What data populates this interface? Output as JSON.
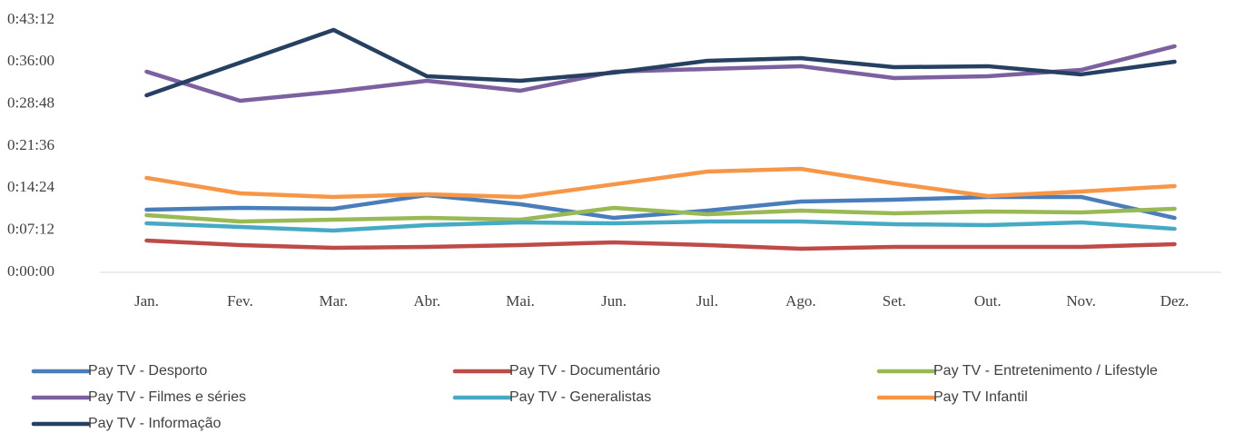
{
  "chart_data": {
    "type": "line",
    "categories": [
      "Jan.",
      "Fev.",
      "Mar.",
      "Abr.",
      "Mai.",
      "Jun.",
      "Jul.",
      "Ago.",
      "Set.",
      "Out.",
      "Nov.",
      "Dez."
    ],
    "series": [
      {
        "name": "Pay TV - Desporto",
        "color": "#4a7ebb",
        "values": [
          643,
          662,
          653,
          793,
          699,
          559,
          634,
          727,
          746,
          774,
          774,
          559
        ]
      },
      {
        "name": "Pay TV - Documentário",
        "color": "#be4b48",
        "values": [
          326,
          280,
          252,
          261,
          280,
          308,
          280,
          242,
          261,
          261,
          261,
          289
        ]
      },
      {
        "name": "Pay TV - Entretenimento / Lifestyle",
        "color": "#98b954",
        "values": [
          587,
          522,
          541,
          559,
          541,
          662,
          597,
          634,
          606,
          625,
          615,
          653
        ]
      },
      {
        "name": "Pay TV - Filmes e séries",
        "color": "#7d60a0",
        "values": [
          2061,
          1762,
          1855,
          1967,
          1865,
          2061,
          2089,
          2117,
          1995,
          2014,
          2079,
          2322
        ]
      },
      {
        "name": "Pay TV - Generalistas",
        "color": "#46aac5",
        "values": [
          503,
          466,
          429,
          485,
          513,
          503,
          522,
          522,
          494,
          485,
          513,
          447
        ]
      },
      {
        "name": "Pay TV Infantil",
        "color": "#f79646",
        "values": [
          970,
          811,
          774,
          802,
          774,
          904,
          1035,
          1063,
          914,
          783,
          830,
          886
        ]
      },
      {
        "name": "Pay TV - Informação",
        "color": "#254061",
        "values": [
          1818,
          2154,
          2490,
          2014,
          1967,
          2051,
          2173,
          2200,
          2107,
          2117,
          2033,
          2163
        ]
      }
    ],
    "ylim": [
      0,
      2592
    ],
    "yticks": [
      {
        "value": 0,
        "label": "0:00:00"
      },
      {
        "value": 432,
        "label": "0:07:12"
      },
      {
        "value": 864,
        "label": "0:14:24"
      },
      {
        "value": 1296,
        "label": "0:21:36"
      },
      {
        "value": 1728,
        "label": "0:28:48"
      },
      {
        "value": 2160,
        "label": "0:36:00"
      },
      {
        "value": 2592,
        "label": "0:43:12"
      }
    ],
    "grid": false,
    "legend": "bottom"
  }
}
